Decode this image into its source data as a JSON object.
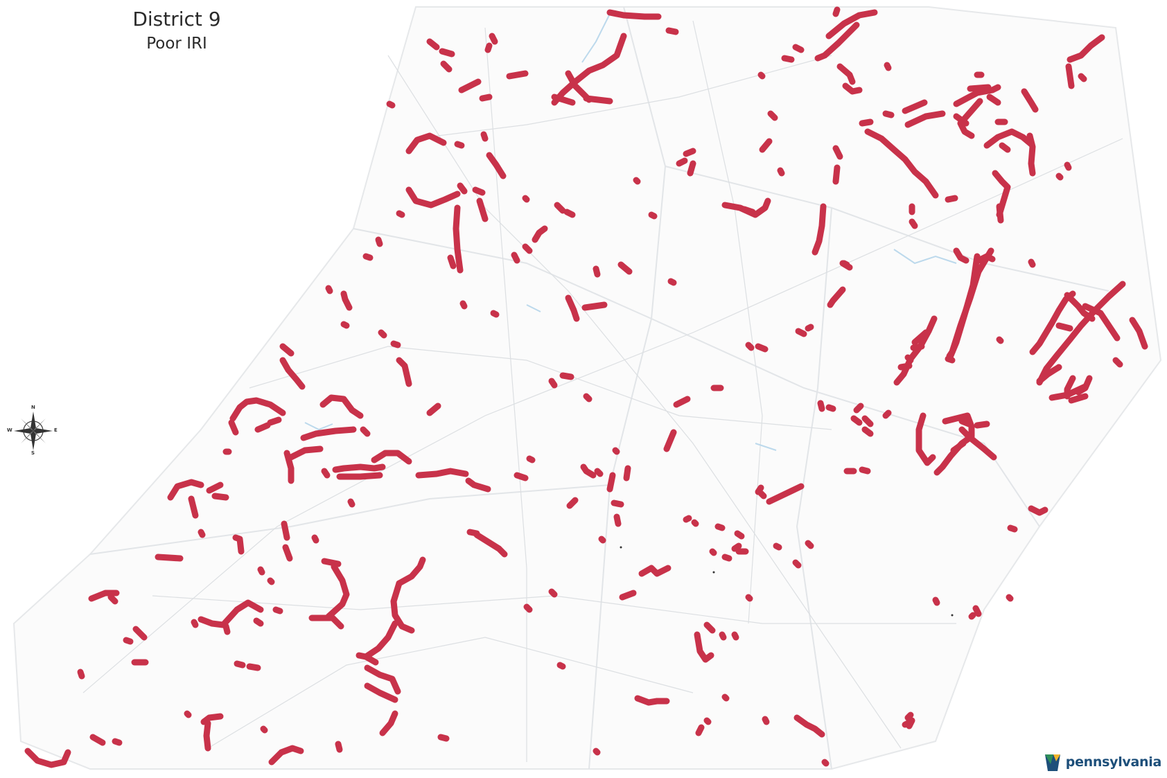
{
  "map": {
    "title": "District 9",
    "subtitle": "Poor IRI",
    "segment_color": "#c8324a",
    "county_fill": "#fbfbfb",
    "county_border": "#dfe3e6",
    "road_color": "#d7dadd",
    "water_color": "#bcd9ec"
  },
  "compass": {
    "icon": "compass-rose-icon",
    "north": "N",
    "south": "S",
    "east": "E",
    "west": "W"
  },
  "logo": {
    "icon": "pennsylvania-keystone-icon",
    "text": "pennsylvania",
    "color": "#1d4f7a"
  }
}
